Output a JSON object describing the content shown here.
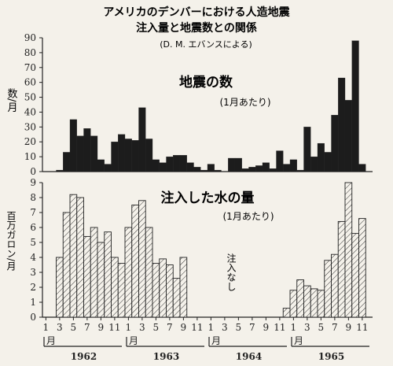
{
  "chart_data": {
    "type": "bar",
    "title_lines": [
      "アメリカのデンバーにおける人造地震",
      "注入量と地震数との関係"
    ],
    "attribution": "(D. M. エバンスによる)",
    "months": [
      "1",
      "3",
      "5",
      "7",
      "9",
      "11",
      "1",
      "3",
      "5",
      "7",
      "9",
      "11",
      "1",
      "3",
      "5",
      "7",
      "9",
      "11",
      "1",
      "3",
      "5",
      "7",
      "9",
      "11"
    ],
    "month_unit": "月",
    "years": [
      "1962",
      "1963",
      "1964",
      "1965"
    ],
    "panels": [
      {
        "title": "地震の数",
        "subtitle": "(1月あたり)",
        "ylabel": "数/月",
        "ylim": [
          0,
          90
        ],
        "yticks": [
          "0",
          "10",
          "20",
          "30",
          "40",
          "50",
          "60",
          "70",
          "80",
          "90"
        ],
        "values": [
          0,
          0,
          1,
          13,
          35,
          24,
          29,
          24,
          8,
          5,
          20,
          25,
          22,
          21,
          43,
          22,
          8,
          6,
          10,
          11,
          11,
          6,
          3,
          1,
          5,
          1,
          0,
          9,
          9,
          2,
          3,
          4,
          6,
          2,
          14,
          5,
          8,
          1,
          30,
          10,
          19,
          13,
          38,
          63,
          48,
          88,
          5,
          0
        ]
      },
      {
        "title": "注入した水の量",
        "subtitle": "(1月あたり)",
        "ylabel": "百万ガロン/月",
        "ylim": [
          0,
          9
        ],
        "yticks": [
          "0",
          "1",
          "2",
          "3",
          "4",
          "5",
          "6",
          "7",
          "8",
          "9"
        ],
        "note": "注入なし",
        "values": [
          0,
          0,
          4,
          7,
          8.2,
          8,
          5.4,
          6,
          5,
          5.7,
          4,
          3.6,
          6,
          7.5,
          7.8,
          6,
          3.6,
          3.9,
          3.5,
          2.6,
          4,
          0,
          0,
          0,
          0,
          0,
          0,
          0,
          0,
          0,
          0,
          0,
          0,
          0,
          0,
          0.6,
          1.8,
          2.5,
          2.1,
          1.9,
          1.8,
          3.8,
          4.2,
          6.4,
          9,
          5.6,
          6.6,
          0
        ]
      }
    ]
  }
}
